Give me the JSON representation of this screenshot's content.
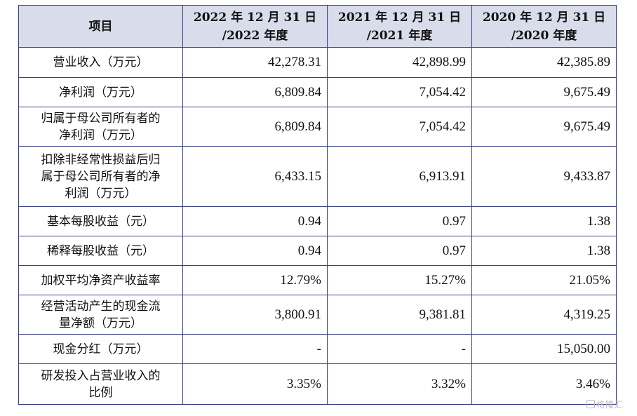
{
  "header": {
    "col0": "项目",
    "col1_line1": "2022 年 12 月 31 日",
    "col1_line2": "/2022 年度",
    "col2_line1": "2021 年 12 月 31 日",
    "col2_line2": "/2021 年度",
    "col3_line1": "2020 年 12 月 31 日",
    "col3_line2": "/2020 年度"
  },
  "rows": [
    {
      "label": [
        "营业收入（万元）"
      ],
      "v2022": "42,278.31",
      "v2021": "42,898.99",
      "v2020": "42,385.89"
    },
    {
      "label": [
        "净利润（万元）"
      ],
      "v2022": "6,809.84",
      "v2021": "7,054.42",
      "v2020": "9,675.49"
    },
    {
      "label": [
        "归属于母公司所有者的",
        "净利润（万元）"
      ],
      "v2022": "6,809.84",
      "v2021": "7,054.42",
      "v2020": "9,675.49"
    },
    {
      "label": [
        "扣除非经常性损益后归",
        "属于母公司所有者的净",
        "利润（万元）"
      ],
      "v2022": "6,433.15",
      "v2021": "6,913.91",
      "v2020": "9,433.87"
    },
    {
      "label": [
        "基本每股收益（元）"
      ],
      "v2022": "0.94",
      "v2021": "0.97",
      "v2020": "1.38"
    },
    {
      "label": [
        "稀释每股收益（元）"
      ],
      "v2022": "0.94",
      "v2021": "0.97",
      "v2020": "1.38"
    },
    {
      "label": [
        "加权平均净资产收益率"
      ],
      "v2022": "12.79%",
      "v2021": "15.27%",
      "v2020": "21.05%"
    },
    {
      "label": [
        "经营活动产生的现金流",
        "量净额（万元）"
      ],
      "v2022": "3,800.91",
      "v2021": "9,381.81",
      "v2020": "4,319.25"
    },
    {
      "label": [
        "现金分红（万元）"
      ],
      "v2022": "-",
      "v2021": "-",
      "v2020": "15,050.00"
    },
    {
      "label": [
        "研发投入占营业收入的",
        "比例"
      ],
      "v2022": "3.35%",
      "v2021": "3.32%",
      "v2020": "3.46%"
    }
  ],
  "watermark": "格隆汇"
}
